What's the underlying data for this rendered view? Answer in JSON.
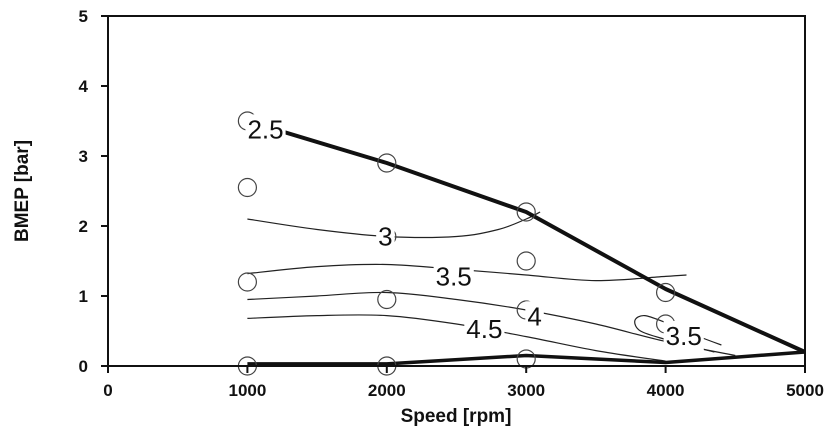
{
  "chart_data": {
    "type": "line",
    "title": "",
    "xlabel": "Speed [rpm]",
    "ylabel": "BMEP [bar]",
    "xlim": [
      0,
      5000
    ],
    "ylim": [
      0,
      5
    ],
    "x_ticks": [
      "0",
      "1000",
      "2000",
      "3000",
      "4000",
      "5000"
    ],
    "y_ticks": [
      "0",
      "1",
      "2",
      "3",
      "4",
      "5"
    ],
    "grid": false,
    "boundary": {
      "upper": [
        {
          "x": 1000,
          "y": 3.5
        },
        {
          "x": 2000,
          "y": 2.9
        },
        {
          "x": 3000,
          "y": 2.2
        },
        {
          "x": 4000,
          "y": 1.1
        },
        {
          "x": 5000,
          "y": 0.2
        }
      ],
      "lower": [
        {
          "x": 1000,
          "y": 0.03
        },
        {
          "x": 2000,
          "y": 0.03
        },
        {
          "x": 3000,
          "y": 0.15
        },
        {
          "x": 4000,
          "y": 0.05
        },
        {
          "x": 5000,
          "y": 0.2
        }
      ]
    },
    "measurement_points": [
      {
        "x": 1000,
        "y": 3.5
      },
      {
        "x": 1000,
        "y": 2.55
      },
      {
        "x": 1000,
        "y": 1.2
      },
      {
        "x": 1000,
        "y": 0.0
      },
      {
        "x": 2000,
        "y": 2.9
      },
      {
        "x": 2000,
        "y": 1.85
      },
      {
        "x": 2000,
        "y": 0.95
      },
      {
        "x": 2000,
        "y": 0.0
      },
      {
        "x": 3000,
        "y": 2.2
      },
      {
        "x": 3000,
        "y": 1.5
      },
      {
        "x": 3000,
        "y": 0.8
      },
      {
        "x": 3000,
        "y": 0.1
      },
      {
        "x": 4000,
        "y": 1.05
      },
      {
        "x": 4000,
        "y": 0.6
      }
    ],
    "contours": [
      {
        "level": 3,
        "points": [
          [
            1000,
            2.1
          ],
          [
            1500,
            1.95
          ],
          [
            2000,
            1.85
          ],
          [
            2500,
            1.85
          ],
          [
            2800,
            1.95
          ],
          [
            3000,
            2.1
          ],
          [
            3100,
            2.2
          ]
        ]
      },
      {
        "level": 3.5,
        "points": [
          [
            1000,
            1.32
          ],
          [
            1500,
            1.42
          ],
          [
            2000,
            1.45
          ],
          [
            2500,
            1.38
          ],
          [
            3000,
            1.3
          ],
          [
            3500,
            1.22
          ],
          [
            4000,
            1.28
          ],
          [
            4150,
            1.3
          ]
        ]
      },
      {
        "level": 4,
        "points": [
          [
            1000,
            0.95
          ],
          [
            1500,
            1.0
          ],
          [
            2000,
            1.05
          ],
          [
            2500,
            0.95
          ],
          [
            3000,
            0.8
          ],
          [
            3500,
            0.6
          ],
          [
            4000,
            0.35
          ],
          [
            4500,
            0.15
          ]
        ]
      },
      {
        "level": 4.5,
        "points": [
          [
            1000,
            0.68
          ],
          [
            1500,
            0.72
          ],
          [
            2000,
            0.72
          ],
          [
            2500,
            0.6
          ],
          [
            3000,
            0.42
          ],
          [
            3500,
            0.22
          ],
          [
            4000,
            0.07
          ]
        ]
      },
      {
        "level": 3.5,
        "points": [
          [
            4400,
            0.3
          ],
          [
            4200,
            0.45
          ],
          [
            4000,
            0.62
          ],
          [
            3850,
            0.72
          ],
          [
            3780,
            0.65
          ],
          [
            3820,
            0.5
          ],
          [
            4000,
            0.38
          ],
          [
            4350,
            0.2
          ]
        ]
      }
    ],
    "annotations": [
      {
        "text": "2.5",
        "x": 1130,
        "y": 3.35
      },
      {
        "text": "3",
        "x": 1990,
        "y": 1.82
      },
      {
        "text": "3.5",
        "x": 2480,
        "y": 1.25
      },
      {
        "text": "4",
        "x": 3060,
        "y": 0.68
      },
      {
        "text": "4.5",
        "x": 2700,
        "y": 0.5
      },
      {
        "text": "3.5",
        "x": 4130,
        "y": 0.4
      }
    ]
  }
}
